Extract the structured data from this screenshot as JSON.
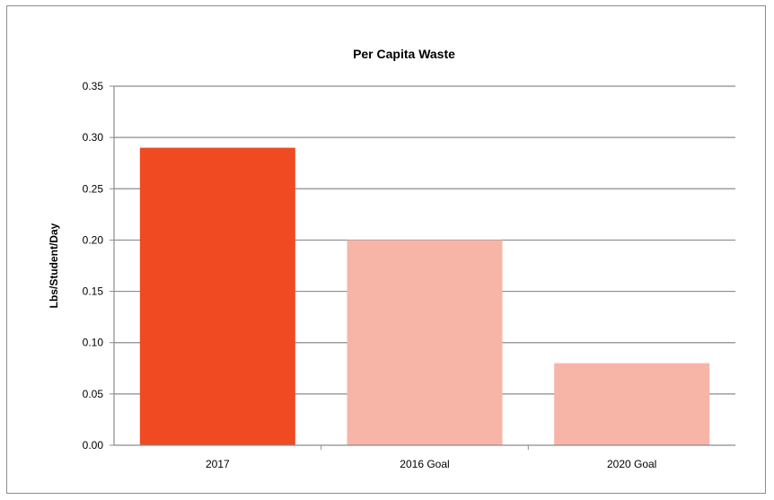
{
  "chart_data": {
    "type": "bar",
    "title": "Per Capita Waste",
    "xlabel": "",
    "ylabel": "Lbs/Student/Day",
    "categories": [
      "2017",
      "2016 Goal",
      "2020 Goal"
    ],
    "values": [
      0.29,
      0.2,
      0.08
    ],
    "ylim": [
      0,
      0.35
    ],
    "yticks": [
      "0.00",
      "0.05",
      "0.10",
      "0.15",
      "0.20",
      "0.25",
      "0.30",
      "0.35"
    ],
    "grid": true,
    "legend": "none",
    "colors": [
      "#f04a23",
      "#f7b5a8",
      "#f7b5a8"
    ]
  }
}
